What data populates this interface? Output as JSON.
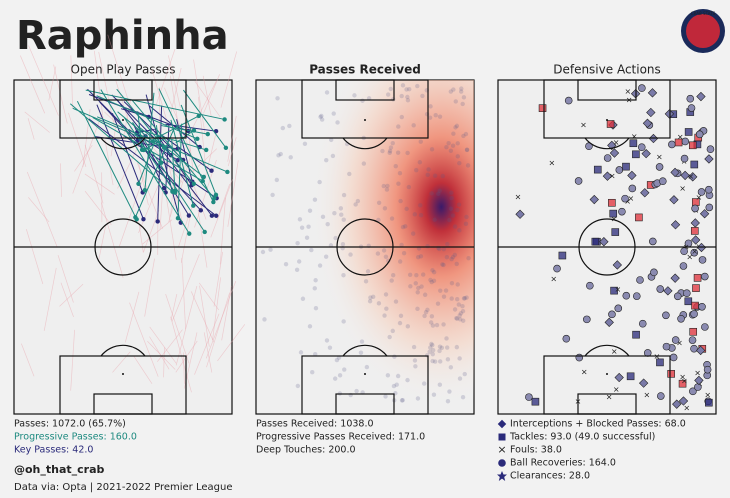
{
  "header": {
    "title": "Raphinha",
    "logo": "CRAB STATS"
  },
  "panels": [
    {
      "title": "Open Play Passes",
      "stats": [
        "Passes: 1072.0 (65.7%)",
        "Progressive Passes: 160.0",
        "Key Passes: 42.0"
      ]
    },
    {
      "title": "Passes Received",
      "stats": [
        "Passes Received: 1038.0",
        "Progressive Passes Received: 171.0",
        "Deep Touches: 200.0"
      ]
    },
    {
      "title": "Defensive Actions",
      "stats": [
        "Interceptions + Blocked Passes: 68.0",
        "Tackles: 93.0 (49.0 successful)",
        "Fouls: 38.0",
        "Ball Recoveries: 164.0",
        "Clearances: 28.0"
      ]
    }
  ],
  "footer": {
    "handle": "@oh_that_crab",
    "source": "Data via: Opta | 2021-2022 Premier League"
  }
}
